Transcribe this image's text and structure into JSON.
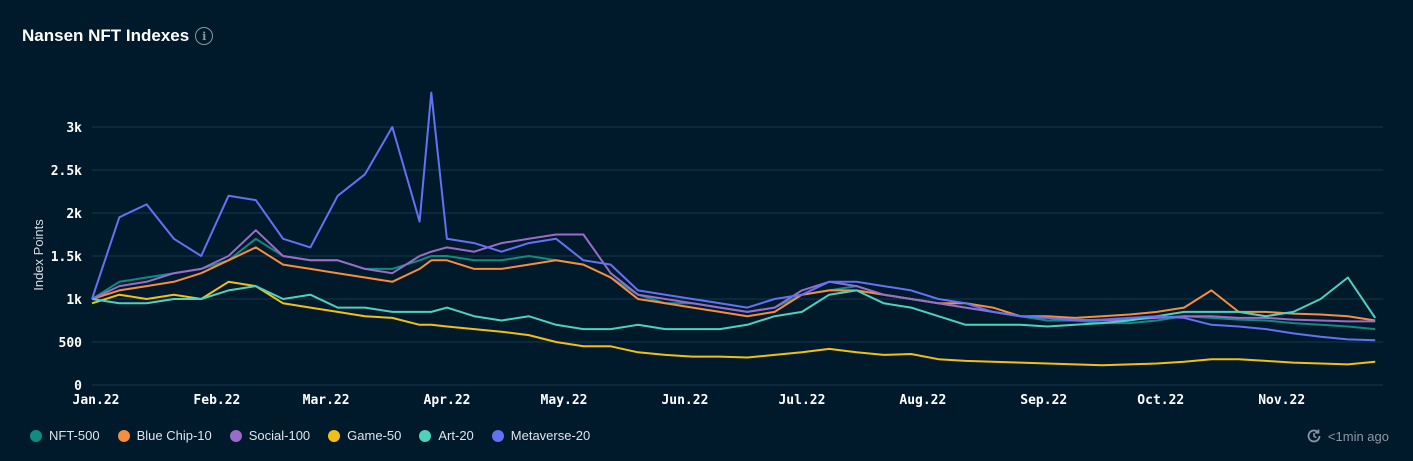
{
  "title": "Nansen NFT Indexes",
  "info_icon": "info-icon",
  "updated": {
    "icon": "clock-refresh-icon",
    "text": "<1min ago"
  },
  "chart_data": {
    "type": "line",
    "title": "Nansen NFT Indexes",
    "ylabel": "Index Points",
    "xlabel": "",
    "ylim": [
      0,
      3600
    ],
    "xlim": [
      "2022-01-01",
      "2022-11-28"
    ],
    "yticks": [
      {
        "v": 0,
        "label": "0"
      },
      {
        "v": 500,
        "label": "500"
      },
      {
        "v": 1000,
        "label": "1k"
      },
      {
        "v": 1500,
        "label": "1.5k"
      },
      {
        "v": 2000,
        "label": "2k"
      },
      {
        "v": 2500,
        "label": "2.5k"
      },
      {
        "v": 3000,
        "label": "3k"
      }
    ],
    "xticks": [
      {
        "d": "2022-01-01",
        "label": "Jan.22"
      },
      {
        "d": "2022-02-01",
        "label": "Feb.22"
      },
      {
        "d": "2022-03-01",
        "label": "Mar.22"
      },
      {
        "d": "2022-04-01",
        "label": "Apr.22"
      },
      {
        "d": "2022-05-01",
        "label": "May.22"
      },
      {
        "d": "2022-06-01",
        "label": "Jun.22"
      },
      {
        "d": "2022-07-01",
        "label": "Jul.22"
      },
      {
        "d": "2022-08-01",
        "label": "Aug.22"
      },
      {
        "d": "2022-09-01",
        "label": "Sep.22"
      },
      {
        "d": "2022-10-01",
        "label": "Oct.22"
      },
      {
        "d": "2022-11-01",
        "label": "Nov.22"
      }
    ],
    "grid": true,
    "legend_position": "bottom-left",
    "x": [
      "2022-01-01",
      "2022-01-08",
      "2022-01-15",
      "2022-01-22",
      "2022-01-29",
      "2022-02-05",
      "2022-02-12",
      "2022-02-19",
      "2022-02-26",
      "2022-03-05",
      "2022-03-12",
      "2022-03-19",
      "2022-03-26",
      "2022-03-29",
      "2022-04-02",
      "2022-04-09",
      "2022-04-16",
      "2022-04-23",
      "2022-04-30",
      "2022-05-07",
      "2022-05-14",
      "2022-05-21",
      "2022-05-28",
      "2022-06-04",
      "2022-06-11",
      "2022-06-18",
      "2022-06-25",
      "2022-07-02",
      "2022-07-09",
      "2022-07-16",
      "2022-07-23",
      "2022-07-30",
      "2022-08-06",
      "2022-08-13",
      "2022-08-20",
      "2022-08-27",
      "2022-09-03",
      "2022-09-10",
      "2022-09-17",
      "2022-09-24",
      "2022-10-01",
      "2022-10-08",
      "2022-10-15",
      "2022-10-22",
      "2022-10-29",
      "2022-11-05",
      "2022-11-12",
      "2022-11-19",
      "2022-11-26"
    ],
    "series": [
      {
        "name": "NFT-500",
        "color": "#0e8c82",
        "values": [
          1000,
          1200,
          1250,
          1300,
          1350,
          1450,
          1700,
          1500,
          1450,
          1450,
          1350,
          1350,
          1450,
          1500,
          1500,
          1450,
          1450,
          1500,
          1450,
          1400,
          1250,
          1050,
          950,
          950,
          900,
          850,
          900,
          1050,
          1100,
          1150,
          1050,
          1000,
          950,
          900,
          850,
          800,
          750,
          750,
          720,
          720,
          750,
          800,
          780,
          760,
          750,
          720,
          700,
          680,
          650
        ]
      },
      {
        "name": "Blue Chip-10",
        "color": "#f68d3f",
        "values": [
          1000,
          1100,
          1150,
          1200,
          1300,
          1450,
          1600,
          1400,
          1350,
          1300,
          1250,
          1200,
          1350,
          1450,
          1450,
          1350,
          1350,
          1400,
          1450,
          1400,
          1250,
          1000,
          950,
          900,
          850,
          800,
          850,
          1050,
          1100,
          1100,
          1050,
          1000,
          950,
          950,
          900,
          800,
          800,
          780,
          800,
          820,
          850,
          900,
          1100,
          850,
          850,
          830,
          820,
          800,
          750
        ]
      },
      {
        "name": "Social-100",
        "color": "#9b6bc9",
        "values": [
          1000,
          1150,
          1200,
          1300,
          1350,
          1500,
          1800,
          1500,
          1450,
          1450,
          1350,
          1300,
          1500,
          1550,
          1600,
          1550,
          1650,
          1700,
          1750,
          1750,
          1300,
          1050,
          1000,
          950,
          900,
          850,
          900,
          1100,
          1200,
          1150,
          1050,
          1000,
          950,
          900,
          850,
          800,
          780,
          760,
          750,
          760,
          780,
          800,
          800,
          780,
          780,
          760,
          750,
          740,
          740
        ]
      },
      {
        "name": "Game-50",
        "color": "#f2c014",
        "values": [
          950,
          1050,
          1000,
          1050,
          1000,
          1200,
          1150,
          950,
          900,
          850,
          800,
          780,
          700,
          700,
          680,
          650,
          620,
          580,
          500,
          450,
          450,
          380,
          350,
          330,
          330,
          320,
          350,
          380,
          420,
          380,
          350,
          360,
          300,
          280,
          270,
          260,
          250,
          240,
          230,
          240,
          250,
          270,
          300,
          300,
          280,
          260,
          250,
          240,
          270
        ]
      },
      {
        "name": "Art-20",
        "color": "#4fd1c0",
        "values": [
          1000,
          950,
          950,
          1000,
          1000,
          1100,
          1150,
          1000,
          1050,
          900,
          900,
          850,
          850,
          850,
          900,
          800,
          750,
          800,
          700,
          650,
          650,
          700,
          650,
          650,
          650,
          700,
          800,
          850,
          1050,
          1100,
          950,
          900,
          800,
          700,
          700,
          700,
          680,
          700,
          720,
          750,
          800,
          850,
          850,
          850,
          800,
          850,
          1000,
          1250,
          780
        ]
      },
      {
        "name": "Metaverse-20",
        "color": "#6272f5",
        "values": [
          1000,
          1950,
          2100,
          1700,
          1500,
          2200,
          2150,
          1700,
          1600,
          2200,
          2450,
          3000,
          1900,
          3400,
          1700,
          1650,
          1550,
          1650,
          1700,
          1450,
          1400,
          1100,
          1050,
          1000,
          950,
          900,
          1000,
          1050,
          1200,
          1200,
          1150,
          1100,
          1000,
          950,
          850,
          800,
          780,
          750,
          760,
          780,
          800,
          780,
          700,
          680,
          650,
          600,
          560,
          530,
          520
        ]
      }
    ]
  }
}
